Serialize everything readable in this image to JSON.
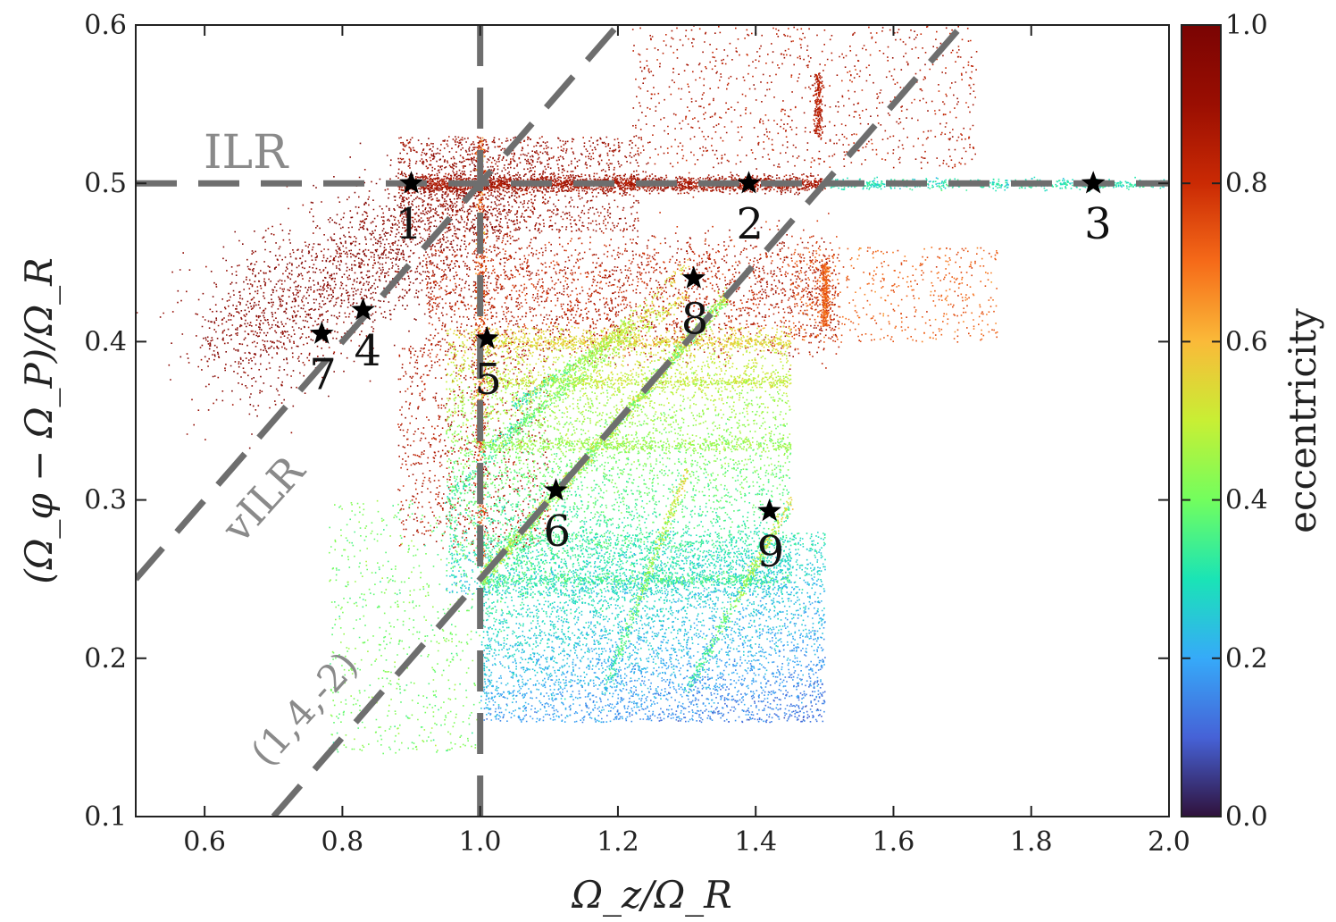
{
  "chart_data": {
    "type": "scatter",
    "title": "",
    "xlabel": "Ω_z/Ω_R",
    "ylabel": "(Ω_φ − Ω_P)/Ω_R",
    "xlim": [
      0.5,
      2.0
    ],
    "ylim": [
      0.1,
      0.6
    ],
    "x_ticks": [
      "0.6",
      "0.8",
      "1.0",
      "1.2",
      "1.4",
      "1.6",
      "1.8",
      "2.0"
    ],
    "y_ticks": [
      "0.1",
      "0.2",
      "0.3",
      "0.4",
      "0.5",
      "0.6"
    ],
    "colorbar": {
      "label": "eccentricity",
      "range": [
        0.0,
        1.0
      ],
      "ticks": [
        "0.0",
        "0.2",
        "0.4",
        "0.6",
        "0.8",
        "1.0"
      ],
      "colormap": "turbo"
    },
    "resonance_lines": [
      {
        "label": "ILR",
        "equation": "y = 0.5"
      },
      {
        "label": "vILR",
        "equation": "y = x/2"
      },
      {
        "label": "(1,4,-2)",
        "equation": "y = (x - 0.5)/2"
      },
      {
        "label": "",
        "equation": "x = 1.0"
      }
    ],
    "highlighted_orbits": [
      {
        "label": "1",
        "x": 0.9,
        "y": 0.5
      },
      {
        "label": "2",
        "x": 1.39,
        "y": 0.5
      },
      {
        "label": "3",
        "x": 1.89,
        "y": 0.5
      },
      {
        "label": "4",
        "x": 0.83,
        "y": 0.42
      },
      {
        "label": "5",
        "x": 1.01,
        "y": 0.402
      },
      {
        "label": "6",
        "x": 1.11,
        "y": 0.306
      },
      {
        "label": "7",
        "x": 0.77,
        "y": 0.405
      },
      {
        "label": "8",
        "x": 1.31,
        "y": 0.44
      },
      {
        "label": "9",
        "x": 1.42,
        "y": 0.293
      }
    ],
    "point_clouds": [
      {
        "region": "ILR clump",
        "x_center": 0.8,
        "y_center": 0.44,
        "eccentricity": 0.95
      },
      {
        "region": "ILR ridge",
        "x_range": [
          0.88,
          1.5
        ],
        "y": 0.5,
        "eccentricity": 0.88
      },
      {
        "region": "ILR ridge, low eccentricity",
        "x_range": [
          1.5,
          2.0
        ],
        "y": 0.5,
        "eccentricity": 0.3
      },
      {
        "region": "upper diffuse",
        "x_range": [
          1.25,
          1.7
        ],
        "y_range": [
          0.5,
          0.6
        ],
        "eccentricity": 0.85
      },
      {
        "region": "middle band",
        "x_range": [
          0.95,
          1.5
        ],
        "y_range": [
          0.4,
          0.46
        ],
        "eccentricity": 0.8
      },
      {
        "region": "green fan",
        "x_range": [
          0.95,
          1.45
        ],
        "y_range": [
          0.25,
          0.4
        ],
        "eccentricity": 0.45
      },
      {
        "region": "blue base",
        "x_range": [
          1.05,
          1.5
        ],
        "y_range": [
          0.16,
          0.3
        ],
        "eccentricity": 0.2
      }
    ]
  }
}
